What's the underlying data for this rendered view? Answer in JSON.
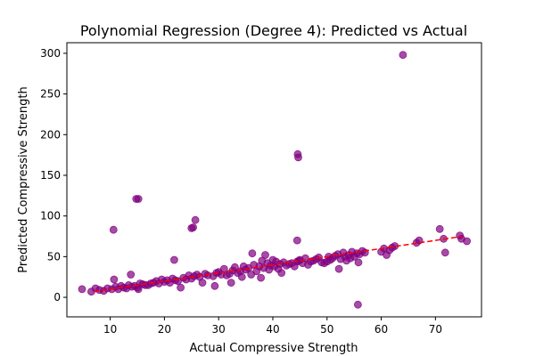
{
  "chart_data": {
    "type": "scatter",
    "title": "Polynomial Regression (Degree 4): Predicted vs Actual",
    "xlabel": "Actual Compressive Strength",
    "ylabel": "Predicted Compressive Strength",
    "xlim": [
      2.0,
      78.5
    ],
    "ylim": [
      -24,
      313
    ],
    "xticks": [
      10,
      20,
      30,
      40,
      50,
      60,
      70
    ],
    "yticks": [
      0,
      50,
      100,
      150,
      200,
      250,
      300
    ],
    "grid": false,
    "point_color": "#800080",
    "reference_line": {
      "style": "dashed",
      "color": "#ff0000",
      "from": [
        7,
        7
      ],
      "to": [
        75,
        75
      ]
    },
    "points": [
      [
        4.8,
        10
      ],
      [
        6.5,
        7
      ],
      [
        7.3,
        11
      ],
      [
        8.0,
        9
      ],
      [
        8.8,
        8
      ],
      [
        9.5,
        11
      ],
      [
        10.3,
        10
      ],
      [
        10.7,
        22
      ],
      [
        11.0,
        13
      ],
      [
        11.5,
        10
      ],
      [
        12.0,
        14
      ],
      [
        12.5,
        12
      ],
      [
        13.0,
        11
      ],
      [
        13.4,
        15
      ],
      [
        13.8,
        28
      ],
      [
        14.0,
        13
      ],
      [
        14.5,
        14
      ],
      [
        15.0,
        12
      ],
      [
        15.2,
        10
      ],
      [
        15.5,
        17
      ],
      [
        16.0,
        16
      ],
      [
        16.5,
        15
      ],
      [
        17.0,
        15
      ],
      [
        17.5,
        17
      ],
      [
        18.0,
        18
      ],
      [
        18.5,
        20
      ],
      [
        19.0,
        17
      ],
      [
        19.5,
        22
      ],
      [
        20.0,
        19
      ],
      [
        20.5,
        21
      ],
      [
        21.0,
        18
      ],
      [
        21.5,
        23
      ],
      [
        22.0,
        21
      ],
      [
        22.5,
        20
      ],
      [
        23.0,
        12
      ],
      [
        23.5,
        24
      ],
      [
        24.0,
        22
      ],
      [
        24.5,
        27
      ],
      [
        25.0,
        23
      ],
      [
        25.5,
        26
      ],
      [
        26.0,
        28
      ],
      [
        26.5,
        25
      ],
      [
        27.0,
        18
      ],
      [
        27.5,
        29
      ],
      [
        28.0,
        27
      ],
      [
        29.0,
        26
      ],
      [
        29.3,
        14
      ],
      [
        29.6,
        30
      ],
      [
        30.0,
        31
      ],
      [
        30.5,
        28
      ],
      [
        31.0,
        35
      ],
      [
        31.5,
        27
      ],
      [
        32.0,
        29
      ],
      [
        32.3,
        18
      ],
      [
        32.6,
        33
      ],
      [
        33.0,
        37
      ],
      [
        33.5,
        30
      ],
      [
        34.0,
        32
      ],
      [
        34.3,
        25
      ],
      [
        34.6,
        38
      ],
      [
        35.0,
        34
      ],
      [
        35.5,
        36
      ],
      [
        36.0,
        28
      ],
      [
        36.2,
        54
      ],
      [
        36.5,
        40
      ],
      [
        37.0,
        32
      ],
      [
        37.5,
        38
      ],
      [
        37.8,
        24
      ],
      [
        38.0,
        45
      ],
      [
        38.3,
        36
      ],
      [
        38.6,
        52
      ],
      [
        39.0,
        42
      ],
      [
        39.3,
        34
      ],
      [
        39.6,
        39
      ],
      [
        40.0,
        46
      ],
      [
        40.3,
        38
      ],
      [
        40.6,
        44
      ],
      [
        41.0,
        35
      ],
      [
        41.3,
        41
      ],
      [
        41.6,
        30
      ],
      [
        42.0,
        43
      ],
      [
        42.5,
        39
      ],
      [
        43.0,
        41
      ],
      [
        43.5,
        42
      ],
      [
        44.0,
        38
      ],
      [
        44.5,
        44
      ],
      [
        44.8,
        45
      ],
      [
        45.0,
        46
      ],
      [
        45.5,
        42
      ],
      [
        46.0,
        48
      ],
      [
        46.5,
        40
      ],
      [
        47.0,
        44
      ],
      [
        47.5,
        45
      ],
      [
        48.0,
        47
      ],
      [
        48.5,
        49
      ],
      [
        49.0,
        43
      ],
      [
        49.5,
        42
      ],
      [
        50.0,
        44
      ],
      [
        50.3,
        50
      ],
      [
        50.6,
        46
      ],
      [
        51.0,
        48
      ],
      [
        51.5,
        51
      ],
      [
        52.0,
        53
      ],
      [
        52.2,
        35
      ],
      [
        52.5,
        47
      ],
      [
        53.0,
        55
      ],
      [
        53.3,
        50
      ],
      [
        53.6,
        45
      ],
      [
        54.0,
        52
      ],
      [
        54.3,
        48
      ],
      [
        54.6,
        56
      ],
      [
        55.0,
        50
      ],
      [
        55.5,
        54
      ],
      [
        55.8,
        43
      ],
      [
        56.0,
        53
      ],
      [
        56.5,
        57
      ],
      [
        57.0,
        55
      ],
      [
        60.0,
        56
      ],
      [
        60.5,
        60
      ],
      [
        61.0,
        52
      ],
      [
        61.5,
        58
      ],
      [
        62.0,
        61
      ],
      [
        62.5,
        63
      ],
      [
        66.5,
        67
      ],
      [
        67.0,
        70
      ],
      [
        70.8,
        84
      ],
      [
        71.5,
        72
      ],
      [
        71.8,
        55
      ],
      [
        74.5,
        76
      ],
      [
        74.8,
        72
      ],
      [
        75.8,
        69
      ],
      [
        10.6,
        83
      ],
      [
        14.8,
        121
      ],
      [
        15.2,
        121
      ],
      [
        25.0,
        85
      ],
      [
        25.3,
        86
      ],
      [
        25.7,
        95
      ],
      [
        21.8,
        46
      ],
      [
        44.5,
        70
      ],
      [
        44.6,
        176
      ],
      [
        44.7,
        172
      ],
      [
        64.0,
        298
      ],
      [
        55.7,
        -9
      ]
    ]
  }
}
